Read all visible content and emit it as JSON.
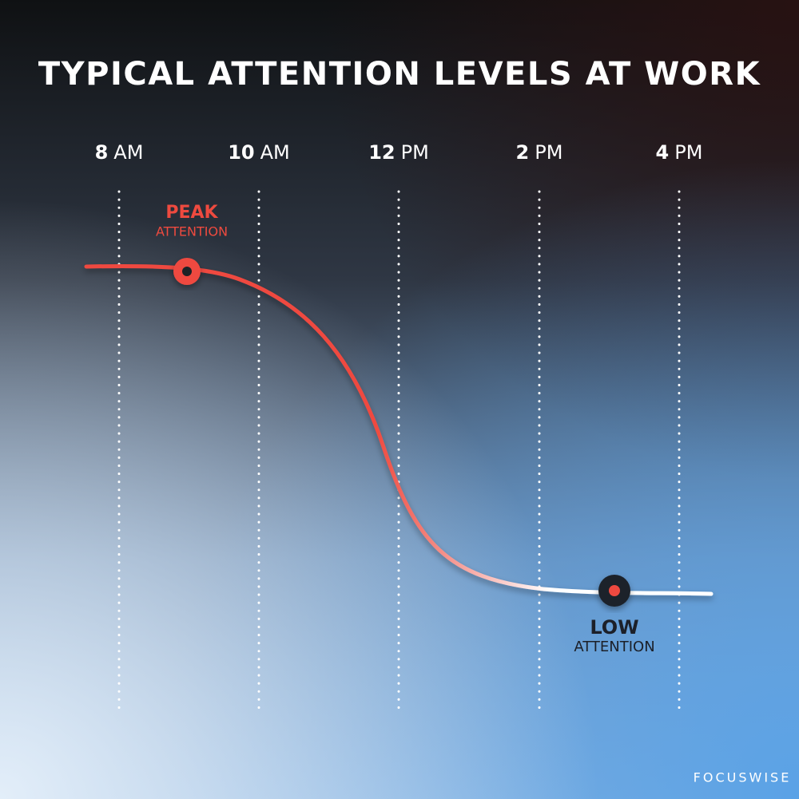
{
  "header": {
    "title": "TYPICAL ATTENTION LEVELS AT WORK"
  },
  "time_labels": [
    {
      "hour": "8",
      "period": "AM"
    },
    {
      "hour": "10",
      "period": "AM"
    },
    {
      "hour": "12",
      "period": "PM"
    },
    {
      "hour": "2",
      "period": "PM"
    },
    {
      "hour": "4",
      "period": "PM"
    }
  ],
  "annotations": {
    "peak": {
      "label": "PEAK",
      "sublabel": "ATTENTION"
    },
    "low": {
      "label": "LOW",
      "sublabel": "ATTENTION"
    }
  },
  "footer": {
    "brand": "FOCUSWISE"
  }
}
